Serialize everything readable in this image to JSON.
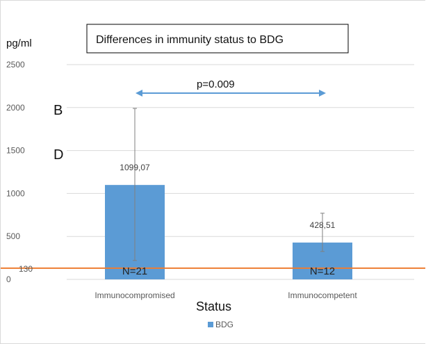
{
  "chart_data": {
    "type": "bar",
    "title": "Differences in immunity status to BDG",
    "ylabel": "pg/ml",
    "xlabel": "Status",
    "categories": [
      "Immunocompromised",
      "Immunocompetent"
    ],
    "series": [
      {
        "name": "BDG",
        "values": [
          1099.07,
          428.51
        ],
        "value_labels": [
          "1099,07",
          "428,51"
        ],
        "error_low": [
          220,
          325
        ],
        "error_high": [
          1990,
          770
        ],
        "n_labels": [
          "N=21",
          "N=12"
        ]
      }
    ],
    "ylim": [
      0,
      2500
    ],
    "yticks": [
      0,
      500,
      1000,
      1500,
      2000,
      2500
    ],
    "reference_line": {
      "value": 130,
      "label": "130"
    },
    "annotations": {
      "p_value": "p=0.009",
      "letter_b": "B",
      "letter_d": "D"
    },
    "grid": true,
    "legend_position": "bottom",
    "colors": {
      "bar": "#5b9bd5",
      "reference": "#ed7d31",
      "arrow": "#5b9bd5",
      "grid": "#d9d9d9",
      "error_bar": "#7f7f7f"
    }
  }
}
